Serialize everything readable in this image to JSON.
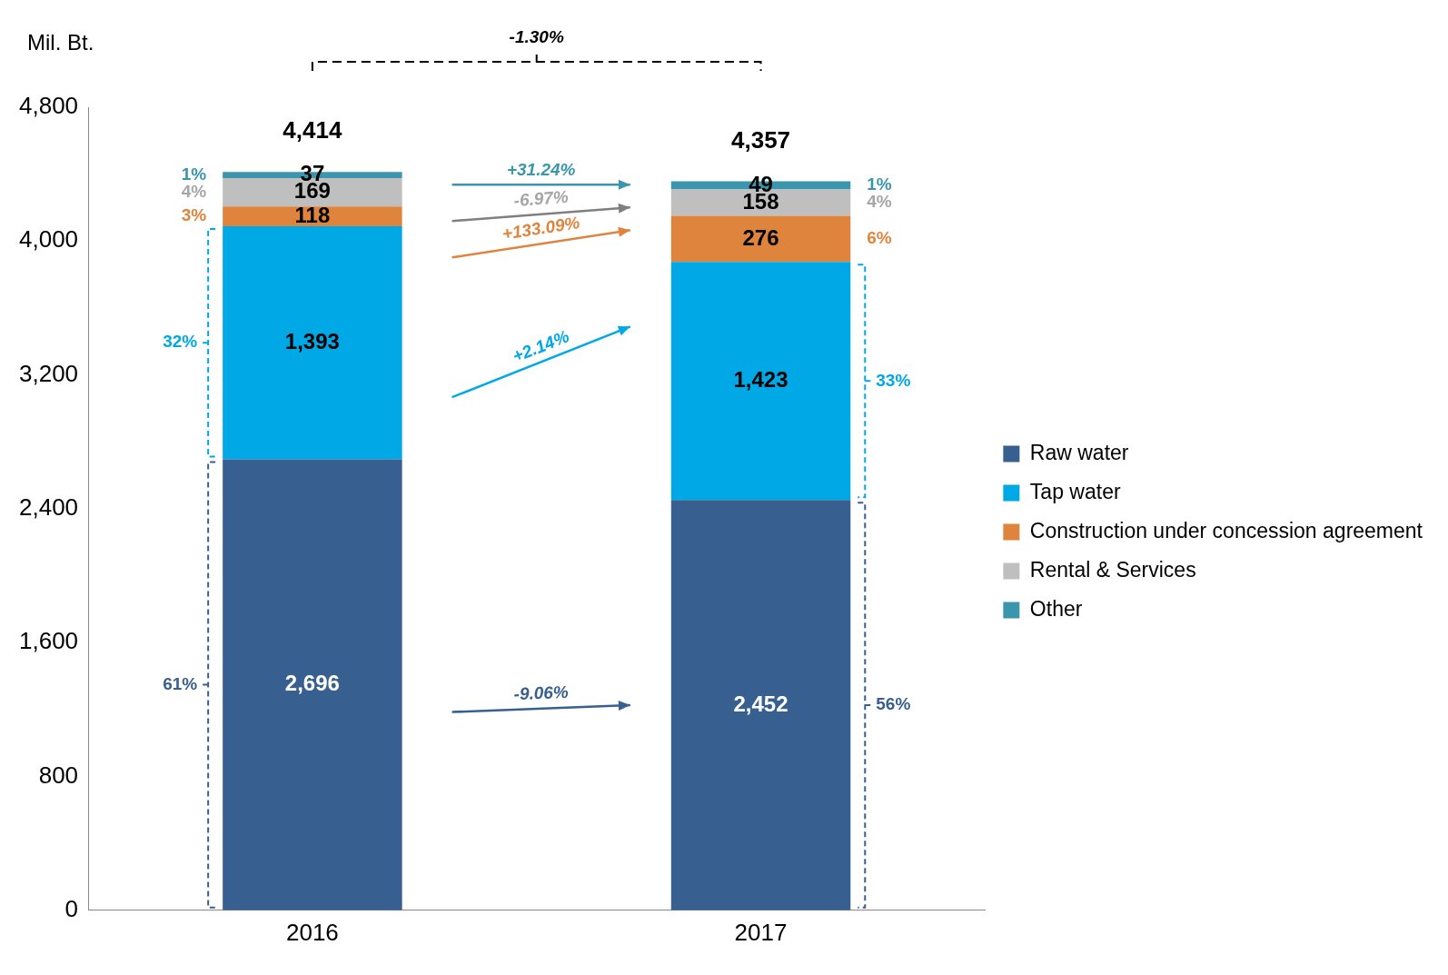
{
  "chart_data": {
    "type": "bar",
    "stacked": true,
    "ylabel": "Mil. Bt.",
    "categories": [
      "2016",
      "2017"
    ],
    "series": [
      {
        "name": "Raw water",
        "color": "#375f8f",
        "values": [
          2696,
          2452
        ],
        "value_labels": [
          "2,696",
          "2,452"
        ]
      },
      {
        "name": "Tap water",
        "color": "#00a8e6",
        "values": [
          1393,
          1423
        ],
        "value_labels": [
          "1,393",
          "1,423"
        ]
      },
      {
        "name": "Construction under concession agreement",
        "color": "#de843d",
        "values": [
          118,
          276
        ],
        "value_labels": [
          "118",
          "276"
        ]
      },
      {
        "name": "Rental & Services",
        "color": "#bfbfbf",
        "values": [
          169,
          158
        ],
        "value_labels": [
          "169",
          "158"
        ]
      },
      {
        "name": "Other",
        "color": "#3b96ad",
        "values": [
          37,
          49
        ],
        "value_labels": [
          "37",
          "49"
        ]
      }
    ],
    "totals": [
      "4,414",
      "4,357"
    ],
    "ylim": [
      0,
      4800
    ],
    "yticks": [
      {
        "value": 0,
        "label": "0"
      },
      {
        "value": 800,
        "label": "800"
      },
      {
        "value": 1600,
        "label": "1,600"
      },
      {
        "value": 2400,
        "label": "2,400"
      },
      {
        "value": 3200,
        "label": "3,200"
      },
      {
        "value": 4000,
        "label": "4,000"
      },
      {
        "value": 4800,
        "label": "4,800"
      }
    ],
    "grid": false,
    "legend": "right",
    "annotations": [
      "61%",
      "32%",
      "3%",
      "4%",
      "1%",
      "56%",
      "33%",
      "6%",
      "4%",
      "1%",
      "-9.06%",
      "+2.14%",
      "+133.09%",
      "-6.97%",
      "+31.24%",
      "-1.30%"
    ]
  }
}
